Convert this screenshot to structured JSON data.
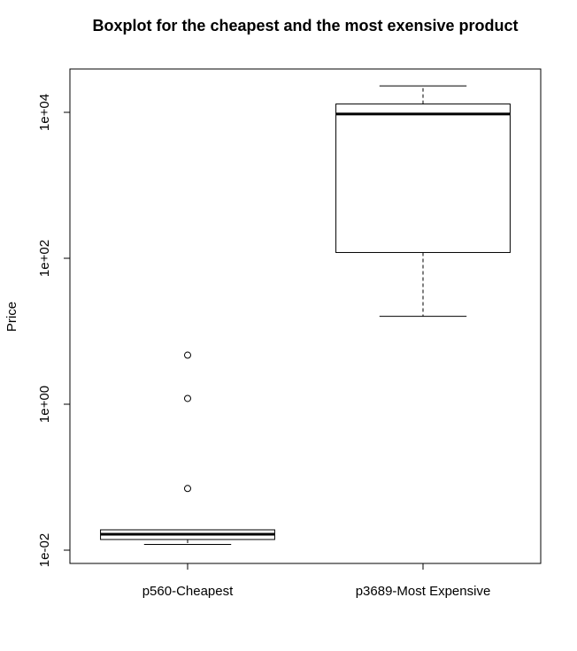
{
  "chart_data": {
    "type": "boxplot",
    "title": "Boxplot for the cheapest and the most exensive product",
    "xlabel": "",
    "ylabel": "Price",
    "yscale": "log10",
    "ylim": [
      0.008,
      35000
    ],
    "y_ticks": [
      {
        "value": 0.01,
        "label": "1e-02"
      },
      {
        "value": 1,
        "label": "1e+00"
      },
      {
        "value": 100,
        "label": "1e+02"
      },
      {
        "value": 10000,
        "label": "1e+04"
      }
    ],
    "categories": [
      "p560-Cheapest",
      "p3689-Most Expensive"
    ],
    "boxes": [
      {
        "name": "p560-Cheapest",
        "whisker_low": 0.012,
        "q1": 0.014,
        "median": 0.0165,
        "q3": 0.019,
        "whisker_high": 0.019,
        "outliers": [
          0.07,
          1.2,
          4.7
        ]
      },
      {
        "name": "p3689-Most Expensive",
        "whisker_low": 16,
        "q1": 120,
        "median": 9500,
        "q3": 13000,
        "whisker_high": 23000,
        "outliers": []
      }
    ],
    "grid": false,
    "legend": "none"
  }
}
